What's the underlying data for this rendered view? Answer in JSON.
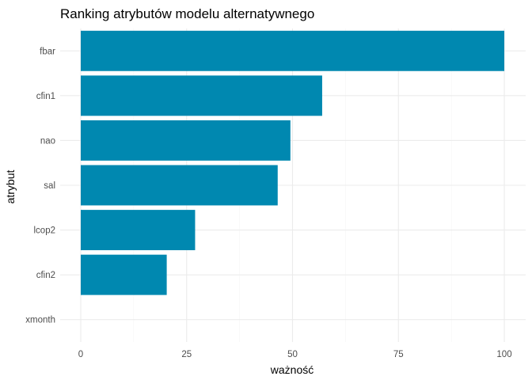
{
  "chart_data": {
    "type": "bar",
    "orientation": "horizontal",
    "title": "Ranking atrybutów modelu alternatywnego",
    "xlabel": "ważność",
    "ylabel": "atrybut",
    "categories": [
      "fbar",
      "cfin1",
      "nao",
      "sal",
      "lcop2",
      "cfin2",
      "xmonth"
    ],
    "values": [
      100,
      57,
      49.5,
      46.5,
      27,
      20.3,
      0
    ],
    "xlim": [
      0,
      100
    ],
    "xticks": [
      0,
      25,
      50,
      75,
      100
    ],
    "grid": true,
    "legend": "none",
    "bar_color": "#0088B0",
    "grid_major_color": "#EBEBEB",
    "grid_minor_color": "#F5F5F5"
  }
}
